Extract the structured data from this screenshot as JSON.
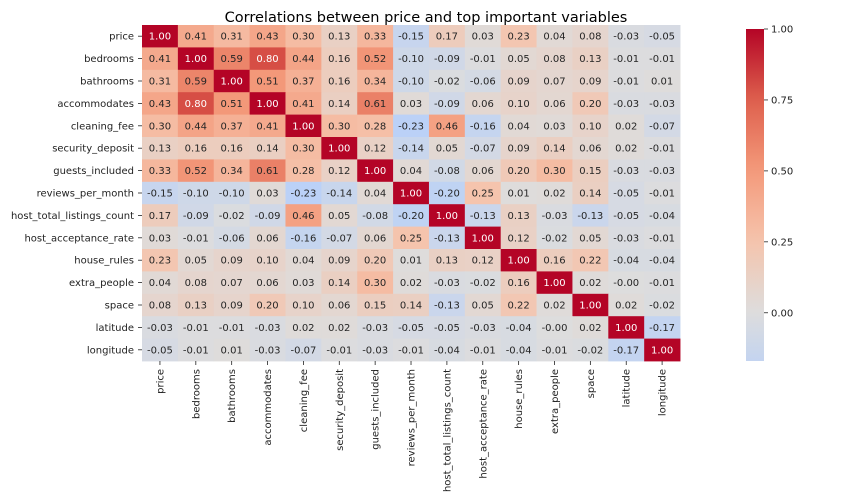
{
  "chart_data": {
    "type": "heatmap",
    "title": "Correlations between price and top important variables",
    "variables": [
      "price",
      "bedrooms",
      "bathrooms",
      "accommodates",
      "cleaning_fee",
      "security_deposit",
      "guests_included",
      "reviews_per_month",
      "host_total_listings_count",
      "host_acceptance_rate",
      "house_rules",
      "extra_people",
      "space",
      "latitude",
      "longitude"
    ],
    "values": [
      [
        "1.00",
        "0.41",
        "0.31",
        "0.43",
        "0.30",
        "0.13",
        "0.33",
        "-0.15",
        "0.17",
        "0.03",
        "0.23",
        "0.04",
        "0.08",
        "-0.03",
        "-0.05"
      ],
      [
        "0.41",
        "1.00",
        "0.59",
        "0.80",
        "0.44",
        "0.16",
        "0.52",
        "-0.10",
        "-0.09",
        "-0.01",
        "0.05",
        "0.08",
        "0.13",
        "-0.01",
        "-0.01"
      ],
      [
        "0.31",
        "0.59",
        "1.00",
        "0.51",
        "0.37",
        "0.16",
        "0.34",
        "-0.10",
        "-0.02",
        "-0.06",
        "0.09",
        "0.07",
        "0.09",
        "-0.01",
        "0.01"
      ],
      [
        "0.43",
        "0.80",
        "0.51",
        "1.00",
        "0.41",
        "0.14",
        "0.61",
        "0.03",
        "-0.09",
        "0.06",
        "0.10",
        "0.06",
        "0.20",
        "-0.03",
        "-0.03"
      ],
      [
        "0.30",
        "0.44",
        "0.37",
        "0.41",
        "1.00",
        "0.30",
        "0.28",
        "-0.23",
        "0.46",
        "-0.16",
        "0.04",
        "0.03",
        "0.10",
        "0.02",
        "-0.07"
      ],
      [
        "0.13",
        "0.16",
        "0.16",
        "0.14",
        "0.30",
        "1.00",
        "0.12",
        "-0.14",
        "0.05",
        "-0.07",
        "0.09",
        "0.14",
        "0.06",
        "0.02",
        "-0.01"
      ],
      [
        "0.33",
        "0.52",
        "0.34",
        "0.61",
        "0.28",
        "0.12",
        "1.00",
        "0.04",
        "-0.08",
        "0.06",
        "0.20",
        "0.30",
        "0.15",
        "-0.03",
        "-0.03"
      ],
      [
        "-0.15",
        "-0.10",
        "-0.10",
        "0.03",
        "-0.23",
        "-0.14",
        "0.04",
        "1.00",
        "-0.20",
        "0.25",
        "0.01",
        "0.02",
        "0.14",
        "-0.05",
        "-0.01"
      ],
      [
        "0.17",
        "-0.09",
        "-0.02",
        "-0.09",
        "0.46",
        "0.05",
        "-0.08",
        "-0.20",
        "1.00",
        "-0.13",
        "0.13",
        "-0.03",
        "-0.13",
        "-0.05",
        "-0.04"
      ],
      [
        "0.03",
        "-0.01",
        "-0.06",
        "0.06",
        "-0.16",
        "-0.07",
        "0.06",
        "0.25",
        "-0.13",
        "1.00",
        "0.12",
        "-0.02",
        "0.05",
        "-0.03",
        "-0.01"
      ],
      [
        "0.23",
        "0.05",
        "0.09",
        "0.10",
        "0.04",
        "0.09",
        "0.20",
        "0.01",
        "0.13",
        "0.12",
        "1.00",
        "0.16",
        "0.22",
        "-0.04",
        "-0.04"
      ],
      [
        "0.04",
        "0.08",
        "0.07",
        "0.06",
        "0.03",
        "0.14",
        "0.30",
        "0.02",
        "-0.03",
        "-0.02",
        "0.16",
        "1.00",
        "0.02",
        "-0.00",
        "-0.01"
      ],
      [
        "0.08",
        "0.13",
        "0.09",
        "0.20",
        "0.10",
        "0.06",
        "0.15",
        "0.14",
        "-0.13",
        "0.05",
        "0.22",
        "0.02",
        "1.00",
        "0.02",
        "-0.02"
      ],
      [
        "-0.03",
        "-0.01",
        "-0.01",
        "-0.03",
        "0.02",
        "0.02",
        "-0.03",
        "-0.05",
        "-0.05",
        "-0.03",
        "-0.04",
        "-0.00",
        "0.02",
        "1.00",
        "-0.17"
      ],
      [
        "-0.05",
        "-0.01",
        "0.01",
        "-0.03",
        "-0.07",
        "-0.01",
        "-0.03",
        "-0.01",
        "-0.04",
        "-0.01",
        "-0.04",
        "-0.01",
        "-0.02",
        "-0.17",
        "1.00"
      ]
    ],
    "colormap": "coolwarm",
    "vmin": -0.17,
    "vmax": 1.0,
    "colorbar_ticks": [
      "0.00",
      "0.25",
      "0.50",
      "0.75",
      "1.00"
    ],
    "annotated": true
  }
}
